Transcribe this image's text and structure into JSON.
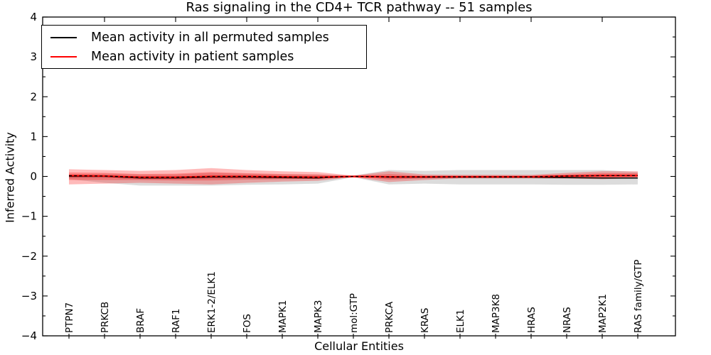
{
  "figure": {
    "title": "Ras signaling in the CD4+ TCR pathway -- 51 samples",
    "xlabel": "Cellular Entities",
    "ylabel": "Inferred Activity"
  },
  "legend": {
    "items": [
      {
        "label": "Mean activity in all permuted samples",
        "color": "#000000"
      },
      {
        "label": "Mean activity in patient samples",
        "color": "#ff0000"
      }
    ]
  },
  "chart_data": {
    "type": "line",
    "title": "Ras signaling in the CD4+ TCR pathway -- 51 samples",
    "xlabel": "Cellular Entities",
    "ylabel": "Inferred Activity",
    "ylim": [
      -4,
      4
    ],
    "y_major_ticks": [
      -4,
      -3,
      -2,
      -1,
      0,
      1,
      2,
      3,
      4
    ],
    "y_minor_step": 0.5,
    "top_tick_indices": [
      1,
      3,
      5,
      7,
      9,
      11,
      13,
      15
    ],
    "grid": false,
    "legend_position": "upper left",
    "categories": [
      "PTPN7",
      "PRKCB",
      "BRAF",
      "RAF1",
      "ERK1-2/ELK1",
      "FOS",
      "MAPK1",
      "MAPK3",
      "mol:GTP",
      "PRKCA",
      "KRAS",
      "ELK1",
      "MAP3K8",
      "HRAS",
      "NRAS",
      "MAP2K1",
      "RAS family/GTP"
    ],
    "series": [
      {
        "name": "Mean activity in all permuted samples",
        "color": "#000000",
        "style": "solid",
        "width": 1.6,
        "values": [
          0.0,
          0.0,
          -0.04,
          -0.04,
          -0.02,
          -0.02,
          -0.03,
          -0.04,
          0.0,
          -0.02,
          -0.02,
          -0.02,
          -0.02,
          -0.02,
          -0.03,
          -0.04,
          -0.04
        ]
      },
      {
        "name": "Mean activity in patient samples",
        "color": "#ff0000",
        "style": "solid-with-black-dash-overlay",
        "width": 2.2,
        "dash_overlay": {
          "color": "#000000",
          "width": 1.3,
          "dash": "4 3.2"
        },
        "values": [
          0.02,
          0.01,
          -0.02,
          -0.02,
          0.0,
          0.0,
          -0.01,
          -0.02,
          0.0,
          -0.01,
          -0.01,
          -0.01,
          -0.01,
          -0.01,
          0.01,
          0.02,
          0.02
        ]
      }
    ],
    "bands": [
      {
        "name": "permuted-samples-range",
        "color": "#8c8c8c",
        "opacity": 0.3,
        "upper": [
          0.05,
          0.07,
          0.05,
          0.05,
          0.09,
          0.07,
          0.05,
          0.05,
          0.02,
          0.16,
          0.14,
          0.16,
          0.16,
          0.16,
          0.16,
          0.16,
          0.11
        ],
        "lower": [
          -0.07,
          -0.16,
          -0.23,
          -0.23,
          -0.23,
          -0.21,
          -0.2,
          -0.18,
          -0.02,
          -0.2,
          -0.18,
          -0.2,
          -0.2,
          -0.2,
          -0.21,
          -0.21,
          -0.2
        ]
      },
      {
        "name": "patient-samples-range-outer",
        "color": "#ff0000",
        "opacity": 0.27,
        "upper": [
          0.18,
          0.16,
          0.14,
          0.16,
          0.21,
          0.16,
          0.13,
          0.11,
          0.02,
          0.13,
          0.05,
          0.04,
          0.04,
          0.04,
          0.09,
          0.13,
          0.13
        ],
        "lower": [
          -0.2,
          -0.18,
          -0.16,
          -0.18,
          -0.2,
          -0.16,
          -0.13,
          -0.11,
          -0.02,
          -0.14,
          -0.09,
          -0.05,
          -0.05,
          -0.05,
          -0.05,
          -0.07,
          -0.04
        ]
      },
      {
        "name": "patient-samples-range-inner",
        "color": "#ff0000",
        "opacity": 0.27,
        "upper": [
          0.1,
          0.09,
          0.06,
          0.07,
          0.11,
          0.08,
          0.06,
          0.05,
          0.01,
          0.06,
          0.02,
          0.02,
          0.02,
          0.02,
          0.05,
          0.08,
          0.08
        ],
        "lower": [
          -0.09,
          -0.09,
          -0.09,
          -0.1,
          -0.1,
          -0.08,
          -0.07,
          -0.06,
          -0.01,
          -0.08,
          -0.05,
          -0.03,
          -0.03,
          -0.03,
          -0.02,
          -0.03,
          -0.01
        ]
      }
    ]
  }
}
